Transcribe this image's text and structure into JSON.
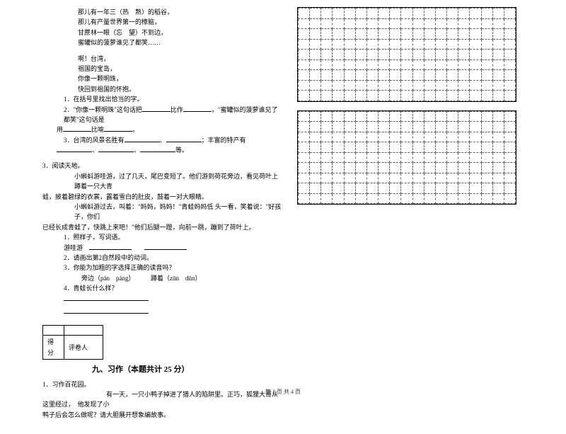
{
  "poem": {
    "l1": "那儿有一年三（热　熟）的稻谷，",
    "l2": "那儿有产量世界第一的樟脑，",
    "l3": "甘蔗林一眼（忘　望）不到边，",
    "l4": "蜜罐似的菠萝谁见了都笑……",
    "l5": "啊！台湾，",
    "l6": "祖国的宝岛，",
    "l7": "你像一颗明珠，",
    "l8": "快回到祖国的怀抱。"
  },
  "q1": {
    "num": "1．在括号里找出恰当的字。",
    "q2a": "2．\"你像一颗明珠\"这句话把",
    "q2b": "比作",
    "q2c": "，\"蜜罐似的菠萝谁见了都笑\"这句话是",
    "q2d": "用",
    "q2e": "比喻",
    "q2f": "。",
    "q3a": "3．台湾的风景名胜有",
    "q3b": "、",
    "q3c": "；丰富的特产有",
    "q3d": "、",
    "q3e": "、",
    "q3f": "等。"
  },
  "read3": {
    "title": "3．阅读天地。",
    "p1": "小蝌蚪游哇游，过了几天，尾巴变短了。他们游到荷花旁边，看见荷叶上蹲着一只大青",
    "p1b": "蛙，披着碧绿的衣裳，露着雪白的肚皮，鼓着一对大眼睛。",
    "p2": "小蝌蚪游过去，叫着：\"妈妈，妈妈！\"青蛙妈妈低 头一看，笑着说：\"好孩子，你们",
    "p2b": "已经长成青蛙了，快跳上来吧！\"他们后腿一蹬，向前一跳，蹦到了荷叶上。",
    "s1a": "1．照样子，写词语。",
    "s1b": "游哇游",
    "s2": "2．请画出第2自然段中的动词。",
    "s3a": "3．你能为加粗的字选择正确的读音吗？",
    "s3b": "旁边（pán　páng）　　　蹲着（zūn　dūn）",
    "s4": "4．青蛙长什么样？"
  },
  "section9": {
    "score_label1": "得分",
    "score_label2": "评卷人",
    "title": "九、习作（本题共计 25 分）",
    "intro": "1．习作百花园。",
    "body1": "有一天，一只小鸭子掉进了猎人的陷阱里。正巧，狐狸大哥从这里经过，",
    "body1b": "他发现了小",
    "body2": "鸭子后会怎么做呢？请大胆展开想象编故事。"
  },
  "footer": "第 3 页 共 4 页",
  "grid": {
    "rows": 9,
    "cols": 19
  }
}
